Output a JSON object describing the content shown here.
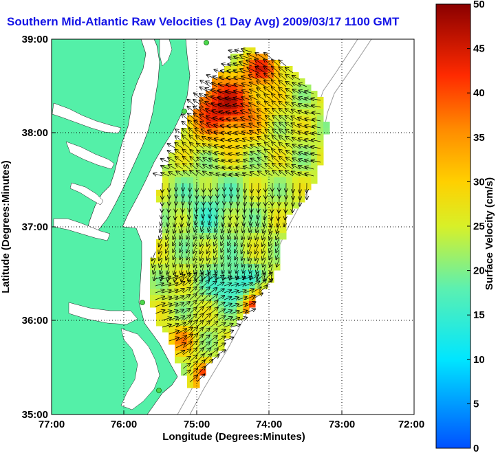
{
  "title": "Southern Mid-Atlantic Raw Velocities (1 Day Avg) 2009/03/17 1100 GMT",
  "x_axis": {
    "label": "Longitude (Degrees:Minutes)",
    "ticks": [
      "77:00",
      "76:00",
      "75:00",
      "74:00",
      "73:00",
      "72:00"
    ]
  },
  "y_axis": {
    "label": "Latitude (Degrees:Minutes)",
    "ticks": [
      "39:00",
      "38:00",
      "37:00",
      "36:00",
      "35:00"
    ]
  },
  "colorbar": {
    "label": "Surface Velocity (cm/s)",
    "ticks": [
      "50",
      "45",
      "40",
      "35",
      "30",
      "25",
      "20",
      "15",
      "10",
      "5",
      "0"
    ],
    "range": [
      0,
      50
    ]
  },
  "map": {
    "lon_range": [
      -77,
      -72
    ],
    "lat_range": [
      35,
      39
    ],
    "land_color": "#54f0a8",
    "grid": "dotted"
  }
}
